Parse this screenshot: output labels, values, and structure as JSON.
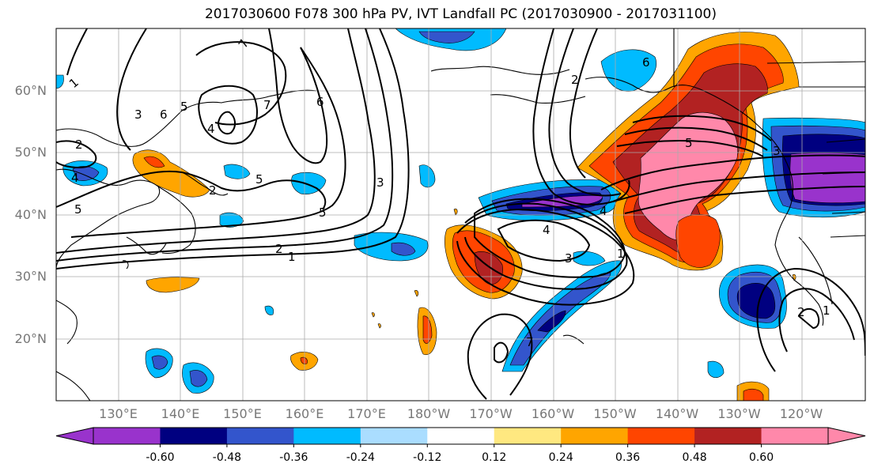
{
  "title": "2017030600 F078 300 hPa PV, IVT Landfall PC (2017030900 - 2017031100)",
  "lat_labels": [
    {
      "text": "60°N",
      "lat": 60
    },
    {
      "text": "50°N",
      "lat": 50
    },
    {
      "text": "40°N",
      "lat": 40
    },
    {
      "text": "30°N",
      "lat": 30
    },
    {
      "text": "20°N",
      "lat": 20
    }
  ],
  "lon_labels": [
    {
      "text": "130°E",
      "lon": 130
    },
    {
      "text": "140°E",
      "lon": 140
    },
    {
      "text": "150°E",
      "lon": 150
    },
    {
      "text": "160°E",
      "lon": 160
    },
    {
      "text": "170°E",
      "lon": 170
    },
    {
      "text": "180°W",
      "lon": 180
    },
    {
      "text": "170°W",
      "lon": 190
    },
    {
      "text": "160°W",
      "lon": 200
    },
    {
      "text": "150°W",
      "lon": 210
    },
    {
      "text": "140°W",
      "lon": 220
    },
    {
      "text": "130°W",
      "lon": 230
    },
    {
      "text": "120°W",
      "lon": 240
    }
  ],
  "colorbar": {
    "colors": [
      "#9933cc",
      "#000080",
      "#3355cc",
      "#00bbff",
      "#aaddff",
      "#ffffff",
      "#ffe880",
      "#ffa500",
      "#ff4500",
      "#b22222",
      "#ff88aa"
    ],
    "tick_labels": [
      "-0.60",
      "-0.48",
      "-0.36",
      "-0.24",
      "-0.12",
      "0.12",
      "0.24",
      "0.36",
      "0.48",
      "0.60"
    ]
  },
  "contour_labels": [
    "1",
    "2",
    "3",
    "4",
    "5",
    "6",
    "7"
  ]
}
